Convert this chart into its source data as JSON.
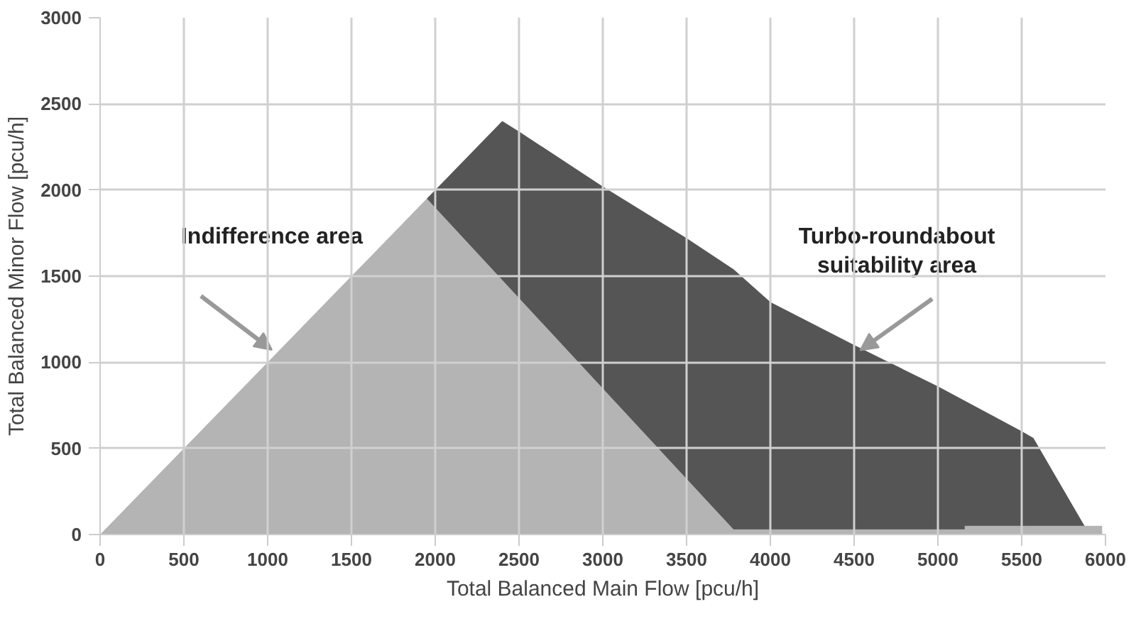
{
  "chart_data": {
    "type": "area",
    "xlabel": "Total Balanced Main Flow [pcu/h]",
    "ylabel": "Total Balanced Minor Flow [pcu/h]",
    "series": [
      {
        "color": "#555555",
        "x": [
          1950,
          2400,
          2500,
          3000,
          3500,
          3780,
          4000,
          4500,
          5000,
          5500,
          5570,
          5875
        ],
        "values": [
          1950,
          2400,
          2340,
          2020,
          1720,
          1540,
          1350,
          1100,
          860,
          600,
          560,
          50
        ]
      },
      {
        "color": "#b4b4b4",
        "x": [
          0,
          1950,
          3780,
          5160,
          5160,
          5980
        ],
        "values": [
          0,
          1950,
          30,
          30,
          50,
          50
        ]
      }
    ],
    "annotations": [
      "Indifference area",
      {
        "text": "Turbo-roundabout\nsuitability area",
        "x": 4536,
        "y": 1069
      }
    ],
    "xlim": [
      0,
      6000
    ],
    "ylim": [
      0,
      3000
    ],
    "xticks": [
      0,
      500,
      1000,
      1500,
      2000,
      2500,
      3000,
      3500,
      4000,
      4500,
      5000,
      5500,
      6000
    ],
    "yticks": [
      0,
      500,
      1000,
      1500,
      2000,
      2500,
      3000
    ],
    "grid": true
  }
}
